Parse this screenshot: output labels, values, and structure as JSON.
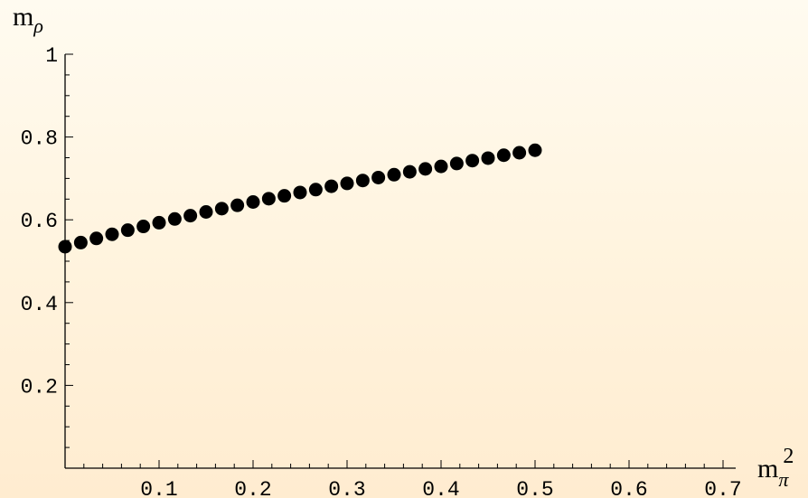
{
  "chart_data": {
    "type": "scatter",
    "title": "",
    "ylabel": {
      "base": "m",
      "sub": "ρ",
      "sup": ""
    },
    "xlabel": {
      "base": "m",
      "sub": "π",
      "sup": "2"
    },
    "xlim": [
      0,
      0.7
    ],
    "ylim": [
      0,
      1
    ],
    "x_ticks": [
      "0.1",
      "0.2",
      "0.3",
      "0.4",
      "0.5",
      "0.6",
      "0.7"
    ],
    "y_ticks": [
      "0.2",
      "0.4",
      "0.6",
      "0.8",
      "1"
    ],
    "grid": false,
    "marker_color": "#000000",
    "series": [
      {
        "x": [
          0.0,
          0.0167,
          0.0333,
          0.05,
          0.0667,
          0.0833,
          0.1,
          0.1167,
          0.1333,
          0.15,
          0.1667,
          0.1833,
          0.2,
          0.2167,
          0.2333,
          0.25,
          0.2667,
          0.2833,
          0.3,
          0.3167,
          0.3333,
          0.35,
          0.3667,
          0.3833,
          0.4,
          0.4167,
          0.4333,
          0.45,
          0.4667,
          0.4833,
          0.5
        ],
        "y": [
          0.535,
          0.545,
          0.555,
          0.565,
          0.575,
          0.584,
          0.593,
          0.602,
          0.61,
          0.619,
          0.627,
          0.635,
          0.643,
          0.651,
          0.658,
          0.666,
          0.673,
          0.681,
          0.688,
          0.695,
          0.702,
          0.709,
          0.716,
          0.723,
          0.729,
          0.736,
          0.743,
          0.749,
          0.756,
          0.762,
          0.768
        ]
      }
    ]
  }
}
